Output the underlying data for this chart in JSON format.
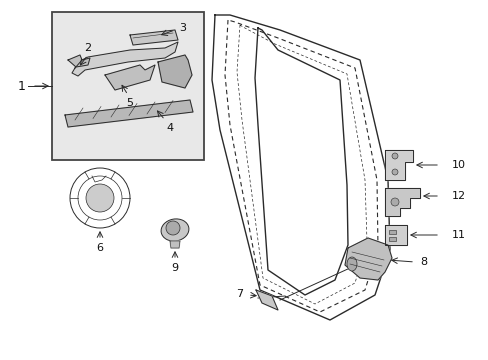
{
  "bg_color": "#ffffff",
  "line_color": "#2a2a2a",
  "box_bg": "#e8e8e8",
  "box_border": "#444444",
  "figsize": [
    4.89,
    3.6
  ],
  "dpi": 100,
  "label_fs": 8,
  "lw_main": 1.0,
  "lw_thin": 0.7,
  "lw_dashed": 0.8
}
